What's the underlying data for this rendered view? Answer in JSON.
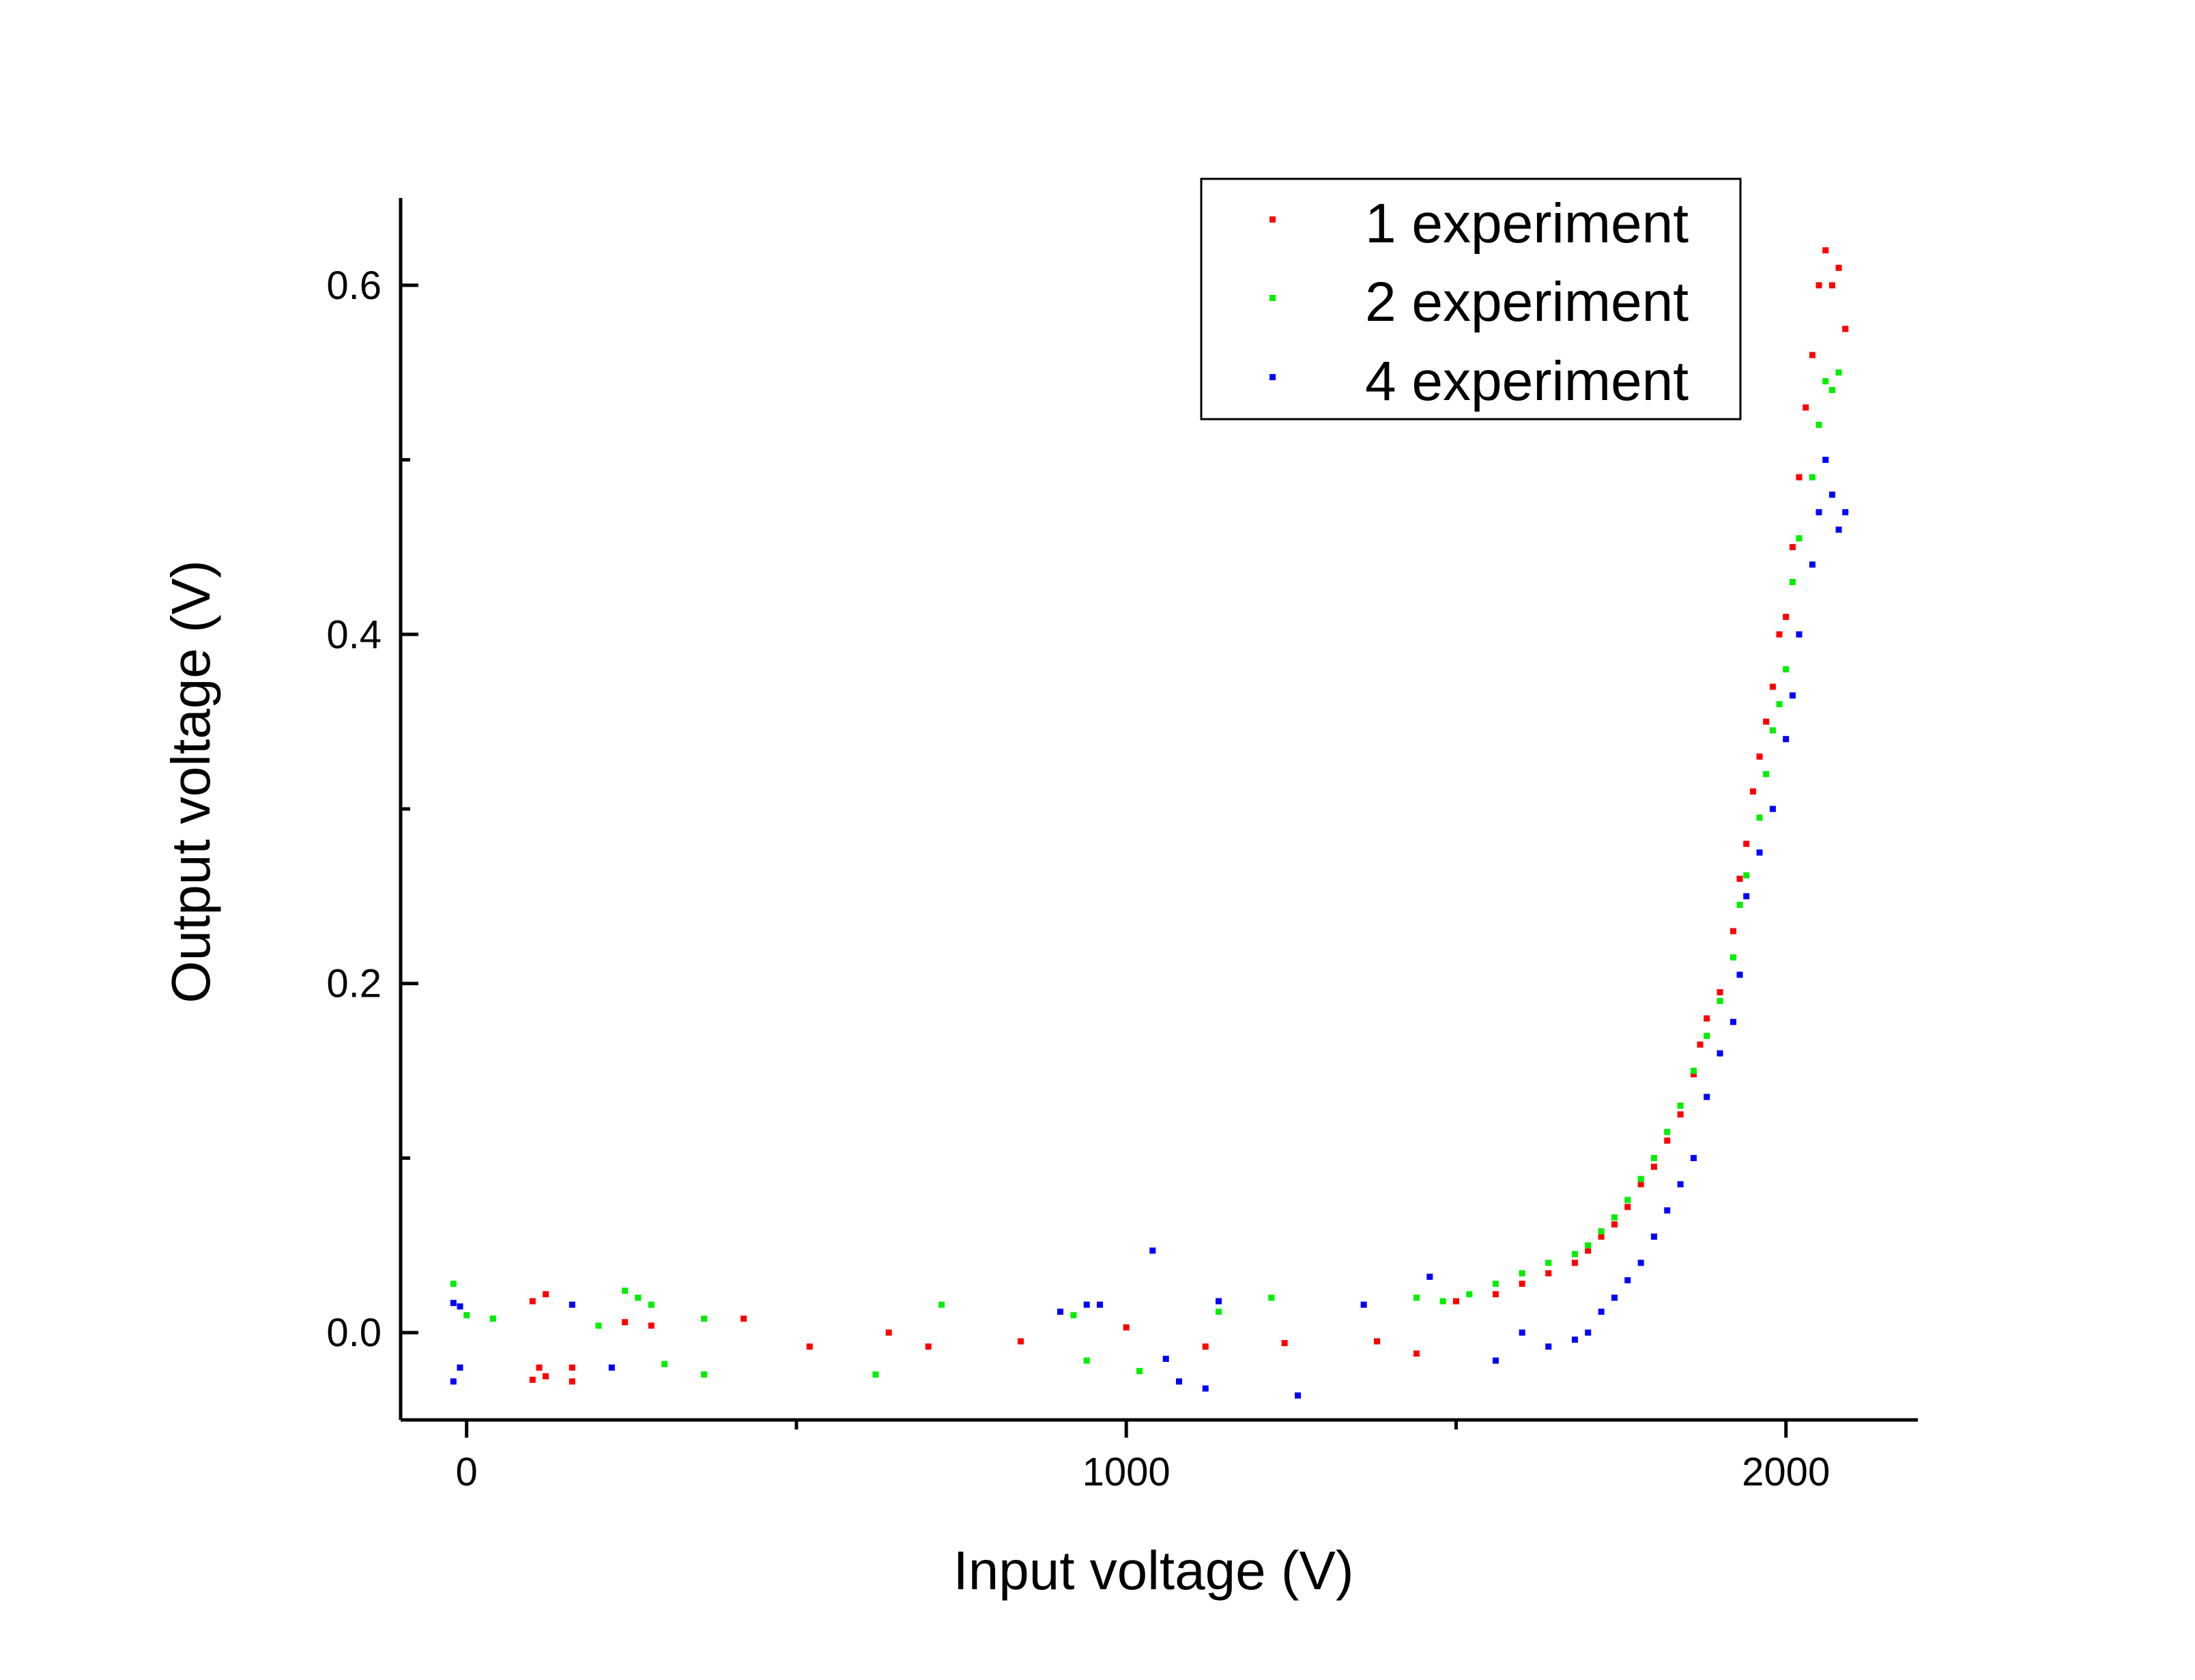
{
  "chart_data": {
    "type": "scatter",
    "xlabel": "Input voltage (V)",
    "ylabel": "Output voltage (V)",
    "xlim": [
      -100,
      2200
    ],
    "ylim": [
      -0.05,
      0.65
    ],
    "x_major_ticks": [
      0,
      1000,
      2000
    ],
    "x_minor_ticks": [
      500,
      1500
    ],
    "x_tick_labels": [
      "0",
      "1000",
      "2000"
    ],
    "y_major_ticks": [
      0.0,
      0.2,
      0.4,
      0.6
    ],
    "y_minor_ticks": [
      0.1,
      0.3,
      0.5
    ],
    "y_tick_labels": [
      "0.0",
      "0.2",
      "0.4",
      "0.6"
    ],
    "grid": false,
    "legend_position": "top-right",
    "series": [
      {
        "name": "1 experiment",
        "color": "#ff0000",
        "points": [
          [
            100,
            -0.027
          ],
          [
            100,
            0.018
          ],
          [
            110,
            -0.02
          ],
          [
            120,
            0.022
          ],
          [
            120,
            -0.025
          ],
          [
            160,
            -0.028
          ],
          [
            160,
            -0.02
          ],
          [
            240,
            0.006
          ],
          [
            280,
            0.004
          ],
          [
            420,
            0.008
          ],
          [
            520,
            -0.008
          ],
          [
            640,
            0.0
          ],
          [
            700,
            -0.008
          ],
          [
            840,
            -0.005
          ],
          [
            1000,
            0.003
          ],
          [
            1120,
            -0.008
          ],
          [
            1240,
            -0.006
          ],
          [
            1380,
            -0.005
          ],
          [
            1440,
            -0.012
          ],
          [
            1500,
            0.018
          ],
          [
            1560,
            0.022
          ],
          [
            1600,
            0.028
          ],
          [
            1640,
            0.034
          ],
          [
            1680,
            0.04
          ],
          [
            1700,
            0.047
          ],
          [
            1720,
            0.055
          ],
          [
            1740,
            0.062
          ],
          [
            1760,
            0.072
          ],
          [
            1780,
            0.085
          ],
          [
            1800,
            0.095
          ],
          [
            1820,
            0.11
          ],
          [
            1840,
            0.125
          ],
          [
            1860,
            0.148
          ],
          [
            1870,
            0.165
          ],
          [
            1880,
            0.18
          ],
          [
            1900,
            0.195
          ],
          [
            1920,
            0.23
          ],
          [
            1930,
            0.26
          ],
          [
            1940,
            0.28
          ],
          [
            1950,
            0.31
          ],
          [
            1960,
            0.33
          ],
          [
            1970,
            0.35
          ],
          [
            1980,
            0.37
          ],
          [
            1990,
            0.4
          ],
          [
            2000,
            0.41
          ],
          [
            2010,
            0.45
          ],
          [
            2020,
            0.49
          ],
          [
            2030,
            0.53
          ],
          [
            2040,
            0.56
          ],
          [
            2050,
            0.6
          ],
          [
            2060,
            0.62
          ],
          [
            2070,
            0.6
          ],
          [
            2080,
            0.61
          ],
          [
            2090,
            0.575
          ]
        ]
      },
      {
        "name": "2 experiment",
        "color": "#00ee00",
        "points": [
          [
            -20,
            0.028
          ],
          [
            0,
            0.01
          ],
          [
            40,
            0.008
          ],
          [
            200,
            0.004
          ],
          [
            240,
            0.024
          ],
          [
            260,
            0.02
          ],
          [
            280,
            0.016
          ],
          [
            300,
            -0.018
          ],
          [
            360,
            -0.024
          ],
          [
            360,
            0.008
          ],
          [
            620,
            -0.024
          ],
          [
            720,
            0.016
          ],
          [
            920,
            0.01
          ],
          [
            940,
            -0.016
          ],
          [
            1020,
            -0.022
          ],
          [
            1140,
            0.012
          ],
          [
            1220,
            0.02
          ],
          [
            1440,
            0.02
          ],
          [
            1480,
            0.018
          ],
          [
            1520,
            0.022
          ],
          [
            1560,
            0.028
          ],
          [
            1600,
            0.034
          ],
          [
            1640,
            0.04
          ],
          [
            1680,
            0.045
          ],
          [
            1700,
            0.05
          ],
          [
            1720,
            0.058
          ],
          [
            1740,
            0.066
          ],
          [
            1760,
            0.076
          ],
          [
            1780,
            0.088
          ],
          [
            1800,
            0.1
          ],
          [
            1820,
            0.115
          ],
          [
            1840,
            0.13
          ],
          [
            1860,
            0.15
          ],
          [
            1880,
            0.17
          ],
          [
            1900,
            0.19
          ],
          [
            1920,
            0.215
          ],
          [
            1930,
            0.245
          ],
          [
            1940,
            0.262
          ],
          [
            1960,
            0.295
          ],
          [
            1970,
            0.32
          ],
          [
            1980,
            0.345
          ],
          [
            1990,
            0.36
          ],
          [
            2000,
            0.38
          ],
          [
            2010,
            0.43
          ],
          [
            2020,
            0.455
          ],
          [
            2040,
            0.49
          ],
          [
            2050,
            0.52
          ],
          [
            2060,
            0.545
          ],
          [
            2070,
            0.54
          ],
          [
            2080,
            0.55
          ]
        ]
      },
      {
        "name": "4 experiment",
        "color": "#0000ff",
        "points": [
          [
            -20,
            0.017
          ],
          [
            -20,
            -0.028
          ],
          [
            -10,
            -0.02
          ],
          [
            -10,
            0.015
          ],
          [
            160,
            0.016
          ],
          [
            220,
            -0.02
          ],
          [
            900,
            0.012
          ],
          [
            940,
            0.016
          ],
          [
            960,
            0.016
          ],
          [
            1040,
            0.047
          ],
          [
            1060,
            -0.015
          ],
          [
            1080,
            -0.028
          ],
          [
            1120,
            -0.032
          ],
          [
            1140,
            0.018
          ],
          [
            1260,
            -0.036
          ],
          [
            1360,
            0.016
          ],
          [
            1460,
            0.032
          ],
          [
            1560,
            -0.016
          ],
          [
            1600,
            0.0
          ],
          [
            1640,
            -0.008
          ],
          [
            1680,
            -0.004
          ],
          [
            1700,
            0.0
          ],
          [
            1720,
            0.012
          ],
          [
            1740,
            0.02
          ],
          [
            1760,
            0.03
          ],
          [
            1780,
            0.04
          ],
          [
            1800,
            0.055
          ],
          [
            1820,
            0.07
          ],
          [
            1840,
            0.085
          ],
          [
            1860,
            0.1
          ],
          [
            1880,
            0.135
          ],
          [
            1900,
            0.16
          ],
          [
            1920,
            0.178
          ],
          [
            1930,
            0.205
          ],
          [
            1940,
            0.25
          ],
          [
            1960,
            0.275
          ],
          [
            1980,
            0.3
          ],
          [
            2000,
            0.34
          ],
          [
            2010,
            0.365
          ],
          [
            2020,
            0.4
          ],
          [
            2040,
            0.44
          ],
          [
            2050,
            0.47
          ],
          [
            2060,
            0.5
          ],
          [
            2070,
            0.48
          ],
          [
            2080,
            0.46
          ],
          [
            2090,
            0.47
          ]
        ]
      }
    ]
  }
}
